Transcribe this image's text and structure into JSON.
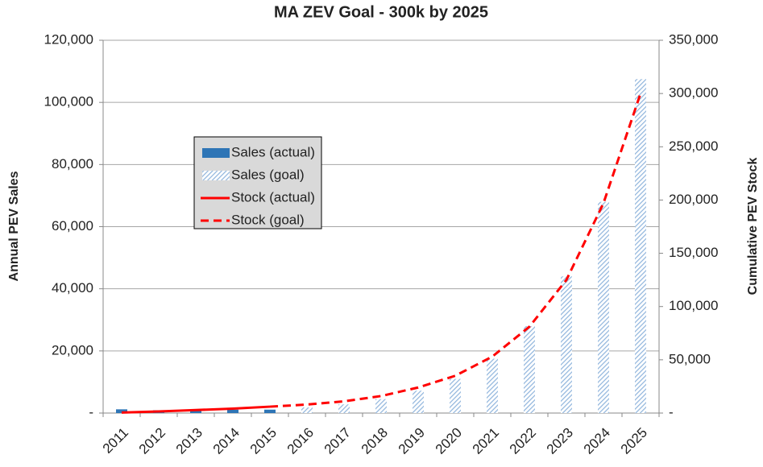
{
  "chart_data": {
    "type": "combo",
    "title": "MA ZEV Goal - 300k by 2025",
    "y_label": "Annual PEV Sales",
    "y2_label": "Cumulative PEV Stock",
    "categories": [
      "2011",
      "2012",
      "2013",
      "2014",
      "2015",
      "2016",
      "2017",
      "2018",
      "2019",
      "2020",
      "2021",
      "2022",
      "2023",
      "2024",
      "2025"
    ],
    "series": [
      {
        "name": "Sales (actual)",
        "type": "bar",
        "color": "#2e75b6",
        "values": [
          1200,
          900,
          1000,
          1100,
          1100,
          null,
          null,
          null,
          null,
          null,
          null,
          null,
          null,
          null,
          null
        ]
      },
      {
        "name": "Sales (goal)",
        "type": "bar",
        "pattern": "hatch",
        "color": "#8fb4dc",
        "values": [
          null,
          null,
          null,
          null,
          null,
          1800,
          2800,
          4500,
          7200,
          11000,
          17500,
          28000,
          44000,
          68000,
          107500
        ]
      },
      {
        "name": "Stock (actual)",
        "type": "line",
        "axis": "y2",
        "color": "#ff0000",
        "values": [
          500,
          1500,
          2800,
          4200,
          6000,
          null,
          null,
          null,
          null,
          null,
          null,
          null,
          null,
          null,
          null
        ]
      },
      {
        "name": "Stock (goal)",
        "type": "line",
        "axis": "y2",
        "dashed": true,
        "color": "#ff0000",
        "values": [
          null,
          null,
          null,
          null,
          6000,
          8000,
          11000,
          16000,
          24000,
          35000,
          53000,
          81000,
          125000,
          197000,
          300000
        ]
      }
    ],
    "ylim": [
      0,
      120000
    ],
    "yticks": [
      {
        "value": 0,
        "label": "-"
      },
      {
        "value": 20000,
        "label": "20,000"
      },
      {
        "value": 40000,
        "label": "40,000"
      },
      {
        "value": 60000,
        "label": "60,000"
      },
      {
        "value": 80000,
        "label": "80,000"
      },
      {
        "value": 100000,
        "label": "100,000"
      },
      {
        "value": 120000,
        "label": "120,000"
      }
    ],
    "y2lim": [
      0,
      350000
    ],
    "y2ticks": [
      {
        "value": 0,
        "label": "-"
      },
      {
        "value": 50000,
        "label": "50,000"
      },
      {
        "value": 100000,
        "label": "100,000"
      },
      {
        "value": 150000,
        "label": "150,000"
      },
      {
        "value": 200000,
        "label": "200,000"
      },
      {
        "value": 250000,
        "label": "250,000"
      },
      {
        "value": 300000,
        "label": "300,000"
      },
      {
        "value": 350000,
        "label": "350,000"
      }
    ],
    "grid": true,
    "legend": "upper-left"
  }
}
